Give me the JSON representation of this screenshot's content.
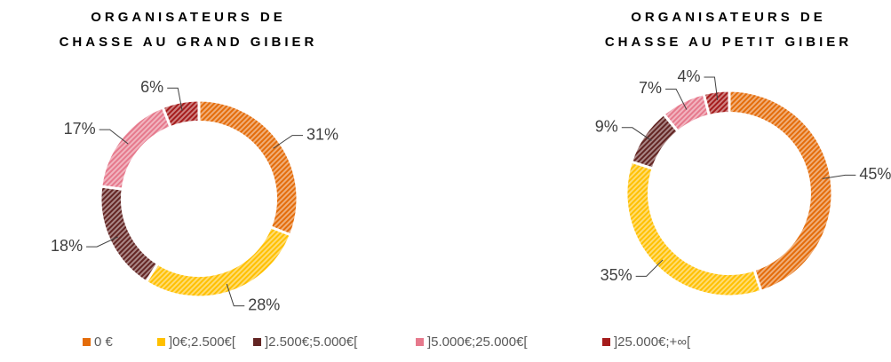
{
  "categories": [
    "0 €",
    "]0€;2.500€[",
    "]2.500€;5.000€[",
    "]5.000€;25.000€[",
    "]25.000€;+∞["
  ],
  "colors": [
    "#e46c0a",
    "#ffc000",
    "#632523",
    "#e6798c",
    "#a51c1c"
  ],
  "chart_data": [
    {
      "type": "pie",
      "title": [
        "ORGANISATEURS DE",
        "CHASSE AU GRAND GIBIER"
      ],
      "values": [
        31,
        28,
        18,
        17,
        6
      ],
      "value_labels": [
        "31%",
        "28%",
        "18%",
        "17%",
        "6%"
      ]
    },
    {
      "type": "pie",
      "title": [
        "ORGANISATEURS DE",
        "CHASSE AU PETIT GIBIER"
      ],
      "values": [
        45,
        35,
        9,
        7,
        4
      ],
      "value_labels": [
        "45%",
        "35%",
        "9%",
        "7%",
        "4%"
      ]
    }
  ]
}
